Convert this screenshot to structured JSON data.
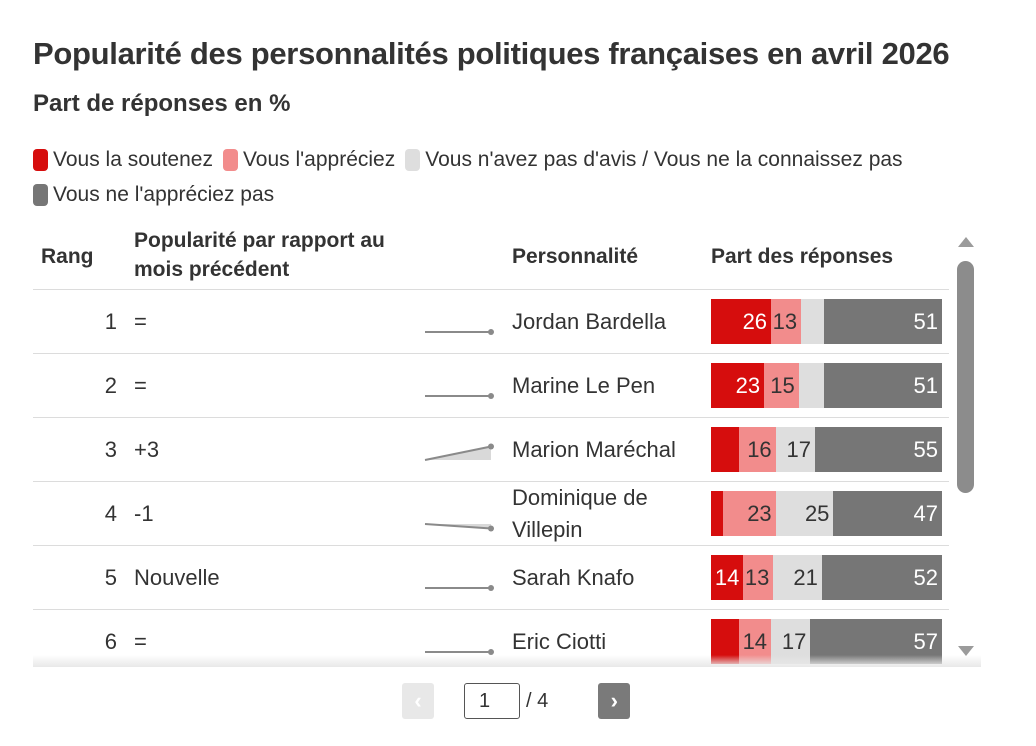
{
  "header": {
    "title": "Popularité des personnalités politiques françaises en avril 2026",
    "subtitle": "Part de réponses en %"
  },
  "chart_data": {
    "type": "table",
    "title": "Popularité des personnalités politiques françaises en avril 2026",
    "subtitle": "Part de réponses en %",
    "legend": [
      {
        "name": "Vous la soutenez",
        "color": "#d60d0d"
      },
      {
        "name": "Vous l'appréciez",
        "color": "#f28c8c"
      },
      {
        "name": "Vous n'avez pas d'avis / Vous ne la connaissez pas",
        "color": "#dedede"
      },
      {
        "name": "Vous ne l'appréciez pas",
        "color": "#767676"
      }
    ],
    "legend_position": "top",
    "columns": [
      "Rang",
      "Popularité par rapport au mois précédent",
      "Personnalité",
      "Part des réponses"
    ],
    "rows": [
      {
        "rank": "1",
        "change": "=",
        "name": "Jordan Bardella",
        "trend": [
          0,
          0
        ],
        "values": [
          26,
          13,
          10,
          51
        ]
      },
      {
        "rank": "2",
        "change": "=",
        "name": "Marine Le Pen",
        "trend": [
          0,
          0
        ],
        "values": [
          23,
          15,
          11,
          51
        ]
      },
      {
        "rank": "3",
        "change": "+3",
        "name": "Marion Maréchal",
        "trend": [
          0,
          3
        ],
        "values": [
          12,
          16,
          17,
          55
        ]
      },
      {
        "rank": "4",
        "change": "-1",
        "name": "Dominique de Villepin",
        "trend": [
          0,
          -1
        ],
        "values": [
          5,
          23,
          25,
          47
        ]
      },
      {
        "rank": "5",
        "change": "Nouvelle",
        "name": "Sarah Knafo",
        "trend": [
          0,
          0
        ],
        "values": [
          14,
          13,
          21,
          52
        ]
      },
      {
        "rank": "6",
        "change": "=",
        "name": "Eric Ciotti",
        "trend": [
          0,
          0
        ],
        "values": [
          12,
          14,
          17,
          57
        ]
      }
    ],
    "label_min": 13,
    "xlim": [
      0,
      100
    ]
  },
  "pagination": {
    "prev": "‹",
    "next": "›",
    "current": "1",
    "total": "/ 4"
  },
  "colors": {
    "dark_text": "#333333",
    "light_label": "#ffffff"
  }
}
